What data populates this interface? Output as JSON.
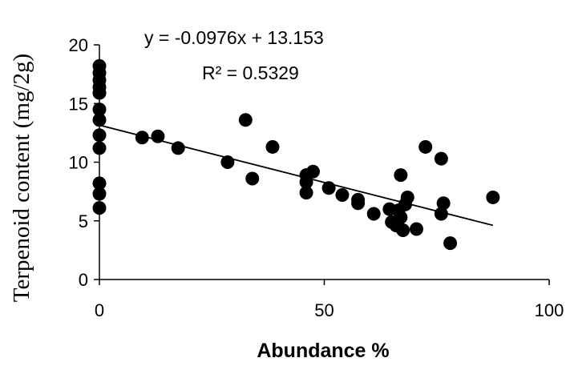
{
  "chart_data": {
    "type": "scatter",
    "xlabel": "Abundance %",
    "ylabel": "Terpenoid content (mg/2g)",
    "xlim": [
      0,
      100
    ],
    "ylim": [
      0,
      20
    ],
    "x_ticks": [
      "0",
      "50",
      "100"
    ],
    "y_ticks": [
      "0",
      "5",
      "10",
      "15",
      "20"
    ],
    "grid": false,
    "marker_color": "#000000",
    "points": [
      [
        0,
        18.2
      ],
      [
        0,
        17.6
      ],
      [
        0,
        17.0
      ],
      [
        0,
        16.4
      ],
      [
        0,
        15.9
      ],
      [
        0,
        14.5
      ],
      [
        0,
        13.6
      ],
      [
        0,
        12.3
      ],
      [
        0,
        11.2
      ],
      [
        0,
        8.2
      ],
      [
        0,
        7.3
      ],
      [
        0,
        6.1
      ],
      [
        9.5,
        12.1
      ],
      [
        13,
        12.2
      ],
      [
        17.5,
        11.2
      ],
      [
        28.5,
        10.0
      ],
      [
        32.5,
        13.6
      ],
      [
        34,
        8.6
      ],
      [
        38.5,
        11.3
      ],
      [
        46,
        8.9
      ],
      [
        46,
        8.3
      ],
      [
        46,
        7.4
      ],
      [
        47.5,
        9.2
      ],
      [
        51,
        7.8
      ],
      [
        54,
        7.2
      ],
      [
        57.5,
        6.8
      ],
      [
        57.5,
        6.5
      ],
      [
        61,
        5.6
      ],
      [
        64.5,
        6.0
      ],
      [
        65,
        4.9
      ],
      [
        66,
        4.6
      ],
      [
        66.5,
        5.9
      ],
      [
        67,
        8.9
      ],
      [
        67,
        5.3
      ],
      [
        67.5,
        4.2
      ],
      [
        68,
        6.4
      ],
      [
        68.5,
        7.0
      ],
      [
        70.5,
        4.3
      ],
      [
        72.5,
        11.3
      ],
      [
        76,
        10.3
      ],
      [
        76,
        5.6
      ],
      [
        76.5,
        6.5
      ],
      [
        78,
        3.1
      ],
      [
        87.5,
        7.0
      ]
    ],
    "trendline": {
      "slope": -0.0976,
      "intercept": 13.153,
      "x_range": [
        0,
        87.5
      ],
      "equation_label": "y = -0.0976x + 13.153",
      "r2_label": "R² = 0.5329"
    }
  }
}
